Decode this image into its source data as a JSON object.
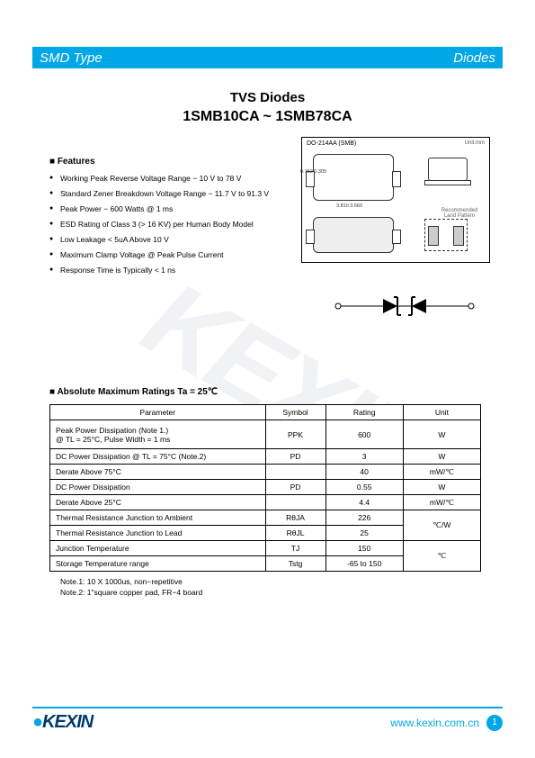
{
  "header": {
    "left": "SMD Type",
    "right": "Diodes"
  },
  "title": {
    "line1": "TVS Diodes",
    "line2": "1SMB10CA ~ 1SMB78CA"
  },
  "features": {
    "heading": "Features",
    "items": [
      "Working Peak Reverse Voltage Range − 10 V to 78 V",
      "Standard Zener Breakdown Voltage Range − 11.7 V to 91.3 V",
      "Peak Power − 600 Watts @ 1 ms",
      "ESD Rating of Class 3 (> 16 KV) per Human Body Model",
      "Low Leakage < 5uA Above 10 V",
      "Maximum Clamp Voltage @ Peak Pulse Current",
      "Response Time is Typically < 1 ns"
    ]
  },
  "package": {
    "label": "DO-214AA  (SMB)",
    "unit": "Unit:mm",
    "pad_label": "Recommended Land Pattern",
    "dims": {
      "h1": "0.152\n0.305",
      "w1": "3.302\n3.048",
      "wtot": "4.597\n4.293",
      "body_w": "3.810\n3.560",
      "tot_w": "5.588\n5.334",
      "side_h": "2.13\n1.80",
      "side_t": "0.152\n0.051",
      "pad_w": "2.50",
      "pad_h": "2.10",
      "pad_sp": "6.80"
    }
  },
  "ratings": {
    "heading": "Absolute Maximum Ratings Ta = 25℃",
    "columns": [
      "Parameter",
      "Symbol",
      "Rating",
      "Unit"
    ],
    "rows": [
      {
        "param": "Peak Power Dissipation    (Note 1.)\n      @ TL = 25°C, Pulse Width = 1 ms",
        "symbol": "PPK",
        "rating": "600",
        "unit": "W",
        "tall": true
      },
      {
        "param": "DC Power Dissipation @ TL = 75°C   (Note.2)",
        "symbol": "PD",
        "rating": "3",
        "unit": "W"
      },
      {
        "param": "Derate Above 75°C",
        "symbol": "",
        "rating": "40",
        "unit": "mW/℃"
      },
      {
        "param": "DC Power Dissipation",
        "symbol": "PD",
        "rating": "0.55",
        "unit": "W"
      },
      {
        "param": "Derate Above 25°C",
        "symbol": "",
        "rating": "4.4",
        "unit": "mW/℃"
      },
      {
        "param": "Thermal Resistance Junction to Ambient",
        "symbol": "RθJA",
        "rating": "226",
        "unit": "℃/W",
        "merge_unit_down": true
      },
      {
        "param": "Thermal Resistance Junction to Lead",
        "symbol": "RθJL",
        "rating": "25",
        "unit": ""
      },
      {
        "param": "Junction Temperature",
        "symbol": "TJ",
        "rating": "150",
        "unit": "℃",
        "merge_unit_down": true
      },
      {
        "param": "Storage Temperature range",
        "symbol": "Tstg",
        "rating": "-65 to 150",
        "unit": ""
      }
    ],
    "notes": [
      "Note.1: 10 X 1000us, non−repetitive",
      "Note.2: 1\"square copper pad, FR−4 board"
    ]
  },
  "footer": {
    "brand": "KEXIN",
    "url": "www.kexin.com.cn",
    "page": "1"
  },
  "watermark": "KEXIN",
  "colors": {
    "accent": "#00a7e7",
    "brand_dark": "#003a6b"
  }
}
